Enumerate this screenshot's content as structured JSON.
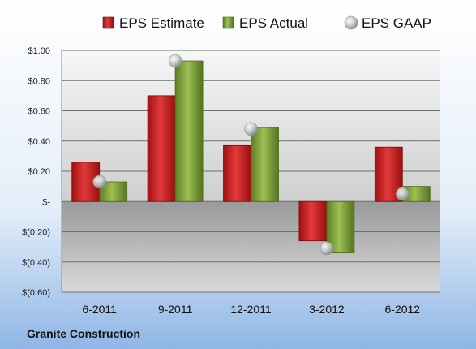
{
  "chart_data": {
    "type": "bar",
    "company": "Granite Construction",
    "categories": [
      "6-2011",
      "9-2011",
      "12-2011",
      "3-2012",
      "6-2012"
    ],
    "series": [
      {
        "name": "EPS Estimate",
        "type": "bar",
        "color": "#cc1f1f",
        "values": [
          0.26,
          0.7,
          0.37,
          -0.26,
          0.36
        ]
      },
      {
        "name": "EPS Actual",
        "type": "bar",
        "color": "#7fa33a",
        "values": [
          0.13,
          0.93,
          0.49,
          -0.34,
          0.1
        ]
      },
      {
        "name": "EPS GAAP",
        "type": "marker",
        "color": "#b9bcc0",
        "values": [
          0.13,
          0.93,
          0.48,
          -0.31,
          0.05
        ]
      }
    ],
    "ylim": [
      -0.6,
      1.0
    ],
    "yticks": [
      {
        "value": 1.0,
        "label": "$1.00"
      },
      {
        "value": 0.8,
        "label": "$0.80"
      },
      {
        "value": 0.6,
        "label": "$0.60"
      },
      {
        "value": 0.4,
        "label": "$0.40"
      },
      {
        "value": 0.2,
        "label": "$0.20"
      },
      {
        "value": 0.0,
        "label": "$-"
      },
      {
        "value": -0.2,
        "label": "$(0.20)"
      },
      {
        "value": -0.4,
        "label": "$(0.40)"
      },
      {
        "value": -0.6,
        "label": "$(0.60)"
      }
    ],
    "legend_position": "top",
    "grid": true,
    "background_color": "#c3d9f2"
  }
}
